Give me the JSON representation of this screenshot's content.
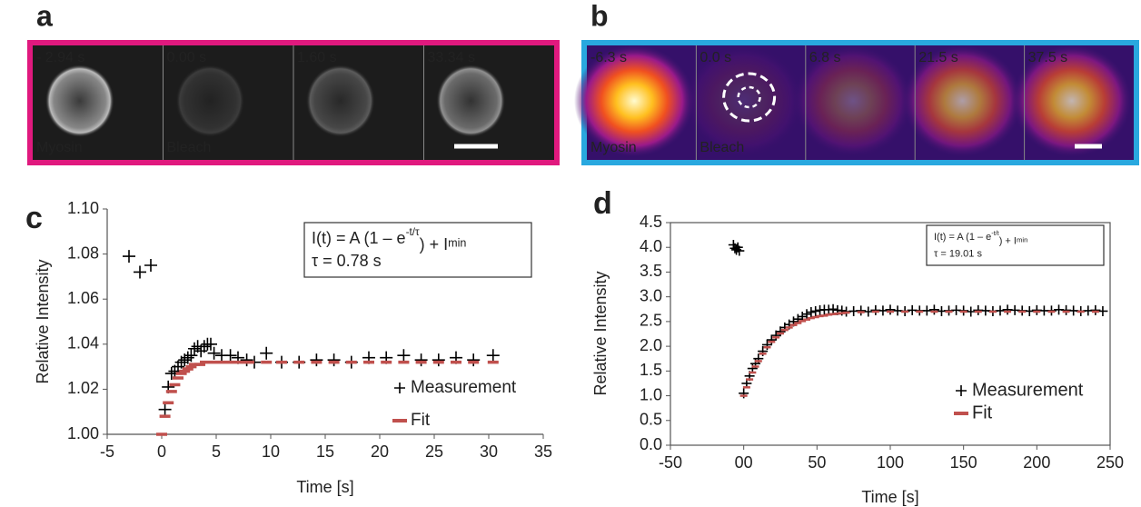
{
  "panels": [
    {
      "label": "a",
      "frames": [
        {
          "time": "- 2.94 s",
          "caption": "Myosin"
        },
        {
          "time": "0.00 s",
          "caption": "Bleach"
        },
        {
          "time": "1.60 s"
        },
        {
          "time": "33.34 s"
        }
      ]
    },
    {
      "label": "b",
      "frames": [
        {
          "time": "-6.3 s",
          "caption": "Myosin"
        },
        {
          "time": "0.0 s",
          "caption": "Bleach"
        },
        {
          "time": "6.8 s"
        },
        {
          "time": "21.5 s"
        },
        {
          "time": "37.5 s"
        }
      ]
    }
  ],
  "chart_data": [
    {
      "type": "scatter",
      "panel_label": "c",
      "x_label": "Time [s]",
      "y_label": "Relative Intensity",
      "equation": [
        "I(t) = A (1 – e",
        "-t/τ",
        ") + I",
        "min"
      ],
      "annotation": "τ = 0.78 s",
      "box": false,
      "xlim": [
        -5,
        35
      ],
      "xticks": [
        -5,
        0,
        5,
        10,
        15,
        20,
        25,
        30,
        35
      ],
      "ylim": [
        1,
        1.1
      ],
      "yticks": [
        {
          "value": 1,
          "label": "1.00"
        },
        1.02,
        1.04,
        1.06,
        1.08,
        {
          "value": 1.1,
          "label": "1.10"
        }
      ],
      "series": [
        {
          "name": "Measurement",
          "color": "#000000",
          "marker": "plus",
          "x": [
            -3,
            -2,
            -1,
            0.3,
            0.6,
            0.9,
            1.2,
            1.5,
            1.8,
            2.1,
            2.4,
            2.7,
            3.0,
            3.3,
            3.6,
            3.9,
            4.2,
            4.5,
            4.8,
            5.5,
            6.3,
            7.0,
            7.8,
            8.5,
            9.6,
            11.0,
            12.6,
            14.2,
            15.8,
            17.4,
            19.0,
            20.6,
            22.2,
            23.8,
            25.4,
            27.0,
            28.6,
            30.4
          ],
          "values": [
            1.079,
            1.072,
            1.075,
            1.011,
            1.021,
            1.027,
            1.028,
            1.03,
            1.032,
            1.033,
            1.034,
            1.035,
            1.038,
            1.039,
            1.037,
            1.039,
            1.04,
            1.04,
            1.036,
            1.035,
            1.035,
            1.034,
            1.033,
            1.032,
            1.036,
            1.032,
            1.032,
            1.033,
            1.033,
            1.032,
            1.034,
            1.034,
            1.035,
            1.033,
            1.033,
            1.034,
            1.033,
            1.035
          ]
        },
        {
          "name": "Fit",
          "color": "#c0504d",
          "marker": "dash",
          "x": [
            0,
            0.3,
            0.6,
            0.9,
            1.2,
            1.5,
            1.8,
            2.1,
            2.4,
            2.7,
            3.0,
            3.5,
            4.0,
            5.0,
            6.0,
            7.0,
            8.0,
            9.6,
            11.0,
            12.6,
            14.2,
            15.8,
            17.4,
            19.0,
            20.6,
            22.2,
            23.8,
            25.4,
            27.0,
            28.6,
            30.4
          ],
          "values": [
            1.0,
            1.008,
            1.014,
            1.019,
            1.022,
            1.025,
            1.027,
            1.028,
            1.029,
            1.03,
            1.031,
            1.031,
            1.032,
            1.032,
            1.032,
            1.032,
            1.032,
            1.032,
            1.032,
            1.032,
            1.032,
            1.032,
            1.032,
            1.032,
            1.032,
            1.032,
            1.032,
            1.032,
            1.032,
            1.032,
            1.032
          ]
        }
      ]
    },
    {
      "type": "scatter",
      "panel_label": "d",
      "x_label": "Time [s]",
      "y_label": "Relative Intensity",
      "equation": [
        "I(t) = A (1 – e",
        "-t/t",
        ") + I",
        "min"
      ],
      "annotation": "τ = 19.01 s",
      "box": true,
      "xlim": [
        -50,
        250
      ],
      "xticks": [
        -50,
        {
          "value": 0,
          "label": "00"
        },
        50,
        100,
        150,
        200,
        250
      ],
      "ylim": [
        0,
        4.5
      ],
      "yticks": [
        {
          "value": 0,
          "label": "0.0"
        },
        0.5,
        {
          "value": 1,
          "label": "1.0"
        },
        1.5,
        {
          "value": 2,
          "label": "2.0"
        },
        2.5,
        {
          "value": 3,
          "label": "3.0"
        },
        3.5,
        {
          "value": 4,
          "label": "4.0"
        },
        4.5
      ],
      "series": [
        {
          "name": "Measurement",
          "color": "#000000",
          "marker": "plus",
          "x": [
            -7,
            -6,
            -5,
            -4,
            -3,
            0,
            2,
            4,
            6,
            8,
            10,
            13,
            16,
            19,
            22,
            25,
            28,
            31,
            34,
            37,
            40,
            43,
            46,
            49,
            52,
            55,
            58,
            61,
            64,
            67,
            70,
            75,
            80,
            85,
            90,
            95,
            100,
            105,
            110,
            115,
            120,
            125,
            130,
            135,
            140,
            145,
            150,
            155,
            160,
            165,
            170,
            175,
            180,
            185,
            190,
            195,
            200,
            205,
            210,
            215,
            220,
            225,
            230,
            235,
            240,
            245
          ],
          "values": [
            4.05,
            3.98,
            3.95,
            4.0,
            3.93,
            1.05,
            1.25,
            1.4,
            1.55,
            1.65,
            1.75,
            1.9,
            2.03,
            2.13,
            2.22,
            2.3,
            2.38,
            2.44,
            2.5,
            2.55,
            2.6,
            2.65,
            2.69,
            2.71,
            2.73,
            2.74,
            2.74,
            2.75,
            2.73,
            2.72,
            2.7,
            2.71,
            2.72,
            2.7,
            2.73,
            2.72,
            2.74,
            2.72,
            2.71,
            2.73,
            2.72,
            2.72,
            2.74,
            2.71,
            2.72,
            2.73,
            2.72,
            2.7,
            2.73,
            2.72,
            2.71,
            2.72,
            2.74,
            2.73,
            2.72,
            2.71,
            2.73,
            2.72,
            2.72,
            2.74,
            2.73,
            2.72,
            2.71,
            2.72,
            2.73,
            2.71
          ]
        },
        {
          "name": "Fit",
          "color": "#c0504d",
          "marker": "dash",
          "x": [
            0,
            2,
            4,
            6,
            8,
            10,
            13,
            16,
            19,
            22,
            25,
            28,
            31,
            34,
            37,
            40,
            43,
            46,
            49,
            52,
            55,
            58,
            61,
            64,
            67,
            70,
            80,
            90,
            100,
            110,
            120,
            130,
            140,
            150,
            160,
            170,
            180,
            190,
            200,
            210,
            220,
            230,
            240
          ],
          "values": [
            1.0,
            1.17,
            1.33,
            1.47,
            1.59,
            1.7,
            1.85,
            1.98,
            2.09,
            2.18,
            2.26,
            2.33,
            2.38,
            2.43,
            2.47,
            2.51,
            2.54,
            2.57,
            2.59,
            2.61,
            2.62,
            2.64,
            2.65,
            2.66,
            2.67,
            2.68,
            2.69,
            2.7,
            2.7,
            2.7,
            2.7,
            2.7,
            2.7,
            2.7,
            2.7,
            2.7,
            2.7,
            2.7,
            2.7,
            2.7,
            2.7,
            2.7,
            2.7
          ]
        }
      ]
    }
  ]
}
